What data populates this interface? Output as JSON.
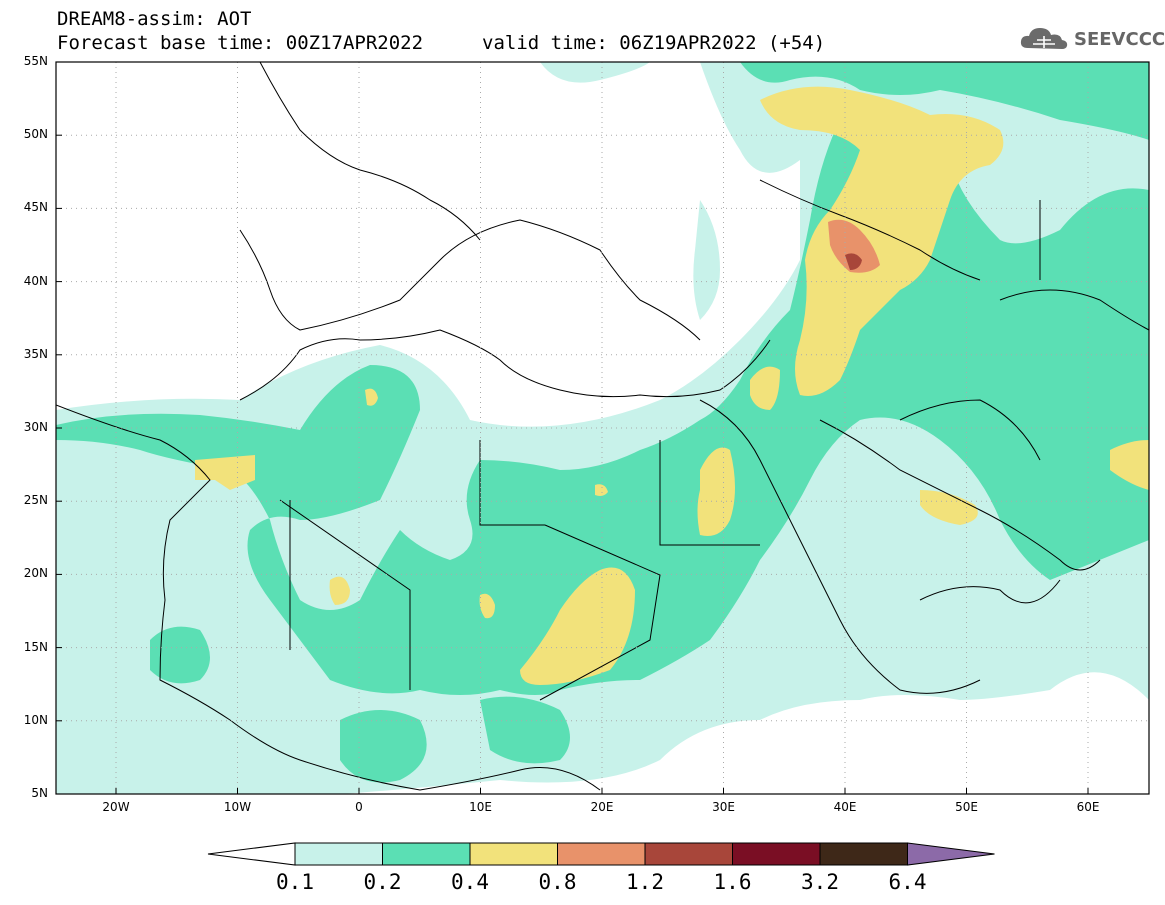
{
  "header": {
    "title_line1": "DREAM8-assim: AOT",
    "title_line2": "Forecast base time: 00Z17APR2022",
    "valid_time": "valid time: 06Z19APR2022 (+54)",
    "logo_text": "SEEVCCC"
  },
  "axes": {
    "lat_labels": [
      "55N",
      "50N",
      "45N",
      "40N",
      "35N",
      "30N",
      "25N",
      "20N",
      "15N",
      "10N",
      "5N"
    ],
    "lon_labels": [
      "20W",
      "10W",
      "0",
      "10E",
      "20E",
      "30E",
      "40E",
      "50E",
      "60E"
    ]
  },
  "colorbar": {
    "levels": [
      "0.1",
      "0.2",
      "0.4",
      "0.8",
      "1.2",
      "1.6",
      "3.2",
      "6.4"
    ],
    "colors": [
      "#ffffff",
      "#c8f2ea",
      "#5bdfb4",
      "#f2e27b",
      "#e8926a",
      "#a8463a",
      "#7a0e24",
      "#3e2818",
      "#8c6aa8"
    ]
  },
  "map": {
    "domain": "North Africa, Middle East and Europe",
    "field": "Aerosol Optical Thickness",
    "colors": {
      "low": "#c8f2ea",
      "mid": "#5bdfb4",
      "high": "#f2e27b",
      "very_high": "#e8926a",
      "peak": "#a8463a"
    }
  }
}
